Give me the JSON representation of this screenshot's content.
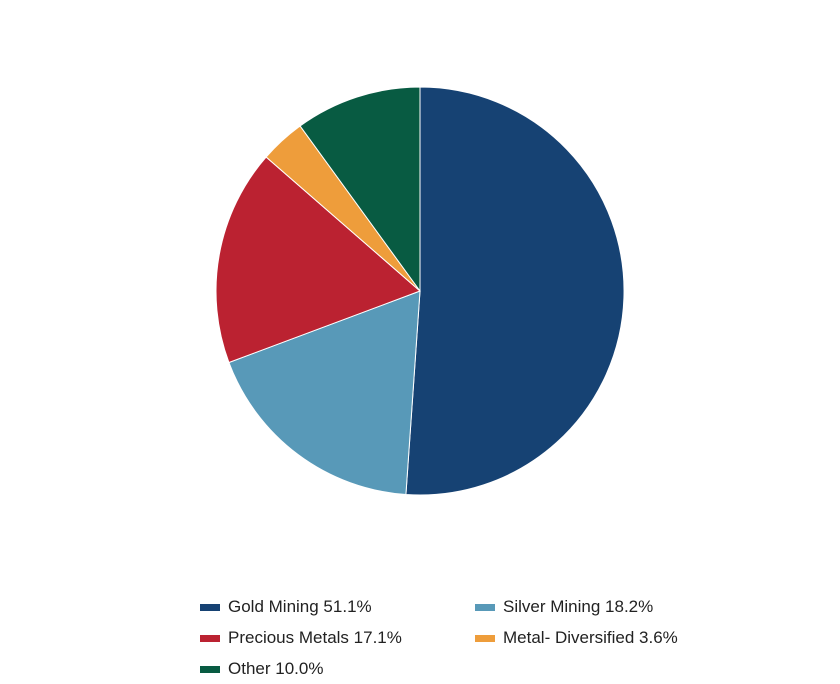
{
  "chart_data": {
    "type": "pie",
    "title": "",
    "start_angle_deg": 0,
    "direction": "clockwise",
    "slices": [
      {
        "label": "Gold Mining",
        "value": 51.1,
        "display": "Gold Mining 51.1%",
        "color": "#164273"
      },
      {
        "label": "Silver Mining",
        "value": 18.2,
        "display": "Silver Mining 18.2%",
        "color": "#5899b8"
      },
      {
        "label": "Precious Metals",
        "value": 17.1,
        "display": "Precious Metals 17.1%",
        "color": "#bb2231"
      },
      {
        "label": "Metal- Diversified",
        "value": 3.6,
        "display": "Metal- Diversified 3.6%",
        "color": "#ee9d3b"
      },
      {
        "label": "Other",
        "value": 10.0,
        "display": "Other 10.0%",
        "color": "#085b42"
      }
    ],
    "legend": {
      "placement": "bottom",
      "order": [
        "Gold Mining",
        "Silver Mining",
        "Precious Metals",
        "Metal- Diversified",
        "Other"
      ]
    }
  }
}
